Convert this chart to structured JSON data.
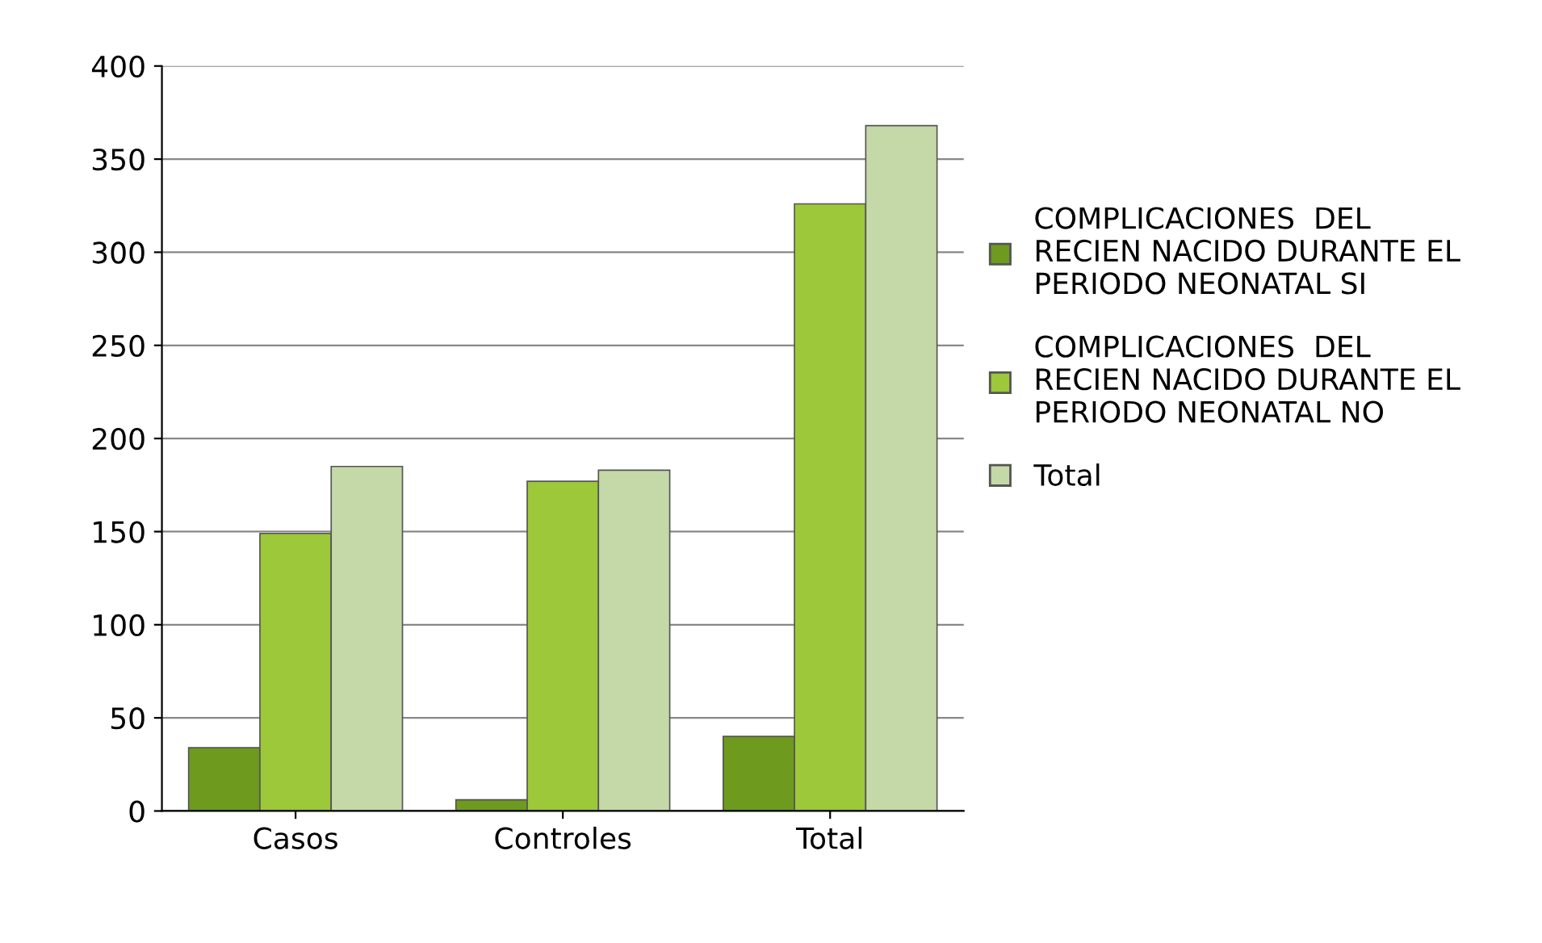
{
  "chart_data": {
    "type": "bar",
    "categories": [
      "Casos",
      "Controles",
      "Total"
    ],
    "series": [
      {
        "name": "COMPLICACIONES  DEL RECIEN NACIDO DURANTE EL PERIODO NEONATAL SI",
        "color": "#6e9a1e",
        "values": [
          34,
          6,
          40
        ]
      },
      {
        "name": "COMPLICACIONES  DEL RECIEN NACIDO DURANTE EL PERIODO NEONATAL NO",
        "color": "#9cc83a",
        "values": [
          149,
          177,
          326
        ]
      },
      {
        "name": "Total",
        "color": "#c5d9a8",
        "values": [
          185,
          183,
          368
        ]
      }
    ],
    "ylim": [
      0,
      400
    ],
    "yticks": [
      0,
      50,
      100,
      150,
      200,
      250,
      300,
      350,
      400
    ],
    "grid": "y",
    "legend": "right"
  }
}
